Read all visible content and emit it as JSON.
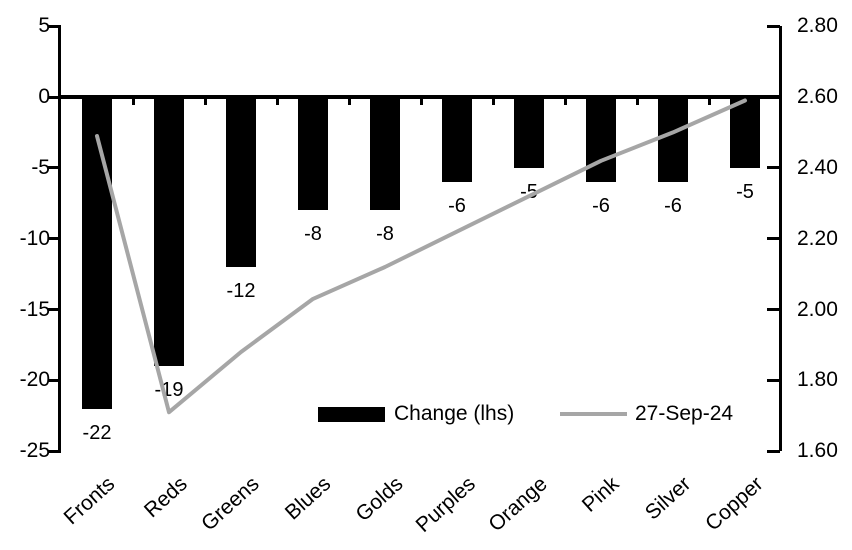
{
  "chart_data": {
    "type": "bar",
    "subtype": "combo-bar-line-dual-axis",
    "title": "",
    "xlabel": "",
    "ylabel_left": "",
    "ylabel_right": "",
    "grid": false,
    "background": "#ffffff",
    "categories": [
      "Fronts",
      "Reds",
      "Greens",
      "Blues",
      "Golds",
      "Purples",
      "Orange",
      "Pink",
      "Silver",
      "Copper"
    ],
    "series": [
      {
        "name": "Change (lhs)",
        "type": "bar",
        "axis": "left",
        "color": "#000000",
        "values": [
          -22,
          -19,
          -12,
          -8,
          -8,
          -6,
          -5,
          -6,
          -6,
          -5
        ],
        "data_labels": [
          "-22",
          "-19",
          "-12",
          "-8",
          "-8",
          "-6",
          "-5",
          "-6",
          "-6",
          "-5"
        ]
      },
      {
        "name": "27-Sep-24",
        "type": "line",
        "axis": "right",
        "color": "#a6a6a6",
        "values": [
          2.49,
          1.71,
          1.88,
          2.03,
          2.12,
          2.22,
          2.32,
          2.42,
          2.5,
          2.59
        ]
      }
    ],
    "left_axis": {
      "labels": [
        "5",
        "0",
        "-5",
        "-10",
        "-15",
        "-20",
        "-25"
      ],
      "ticks": [
        5,
        0,
        -5,
        -10,
        -15,
        -20,
        -25
      ],
      "range": [
        -25,
        5
      ]
    },
    "right_axis": {
      "labels": [
        "2.80",
        "2.60",
        "2.40",
        "2.20",
        "2.00",
        "1.80",
        "1.60"
      ],
      "ticks": [
        2.8,
        2.6,
        2.4,
        2.2,
        2.0,
        1.8,
        1.6
      ],
      "range": [
        1.6,
        2.8
      ]
    },
    "legend": {
      "position": "inside-bottom",
      "items": [
        {
          "label": "Change (lhs)",
          "swatch": "bar",
          "color": "#000000"
        },
        {
          "label": "27-Sep-24",
          "swatch": "line",
          "color": "#a6a6a6"
        }
      ]
    }
  },
  "colors": {
    "bar": "#000000",
    "line": "#a6a6a6",
    "axis": "#000000",
    "text": "#000000",
    "background": "#ffffff"
  }
}
